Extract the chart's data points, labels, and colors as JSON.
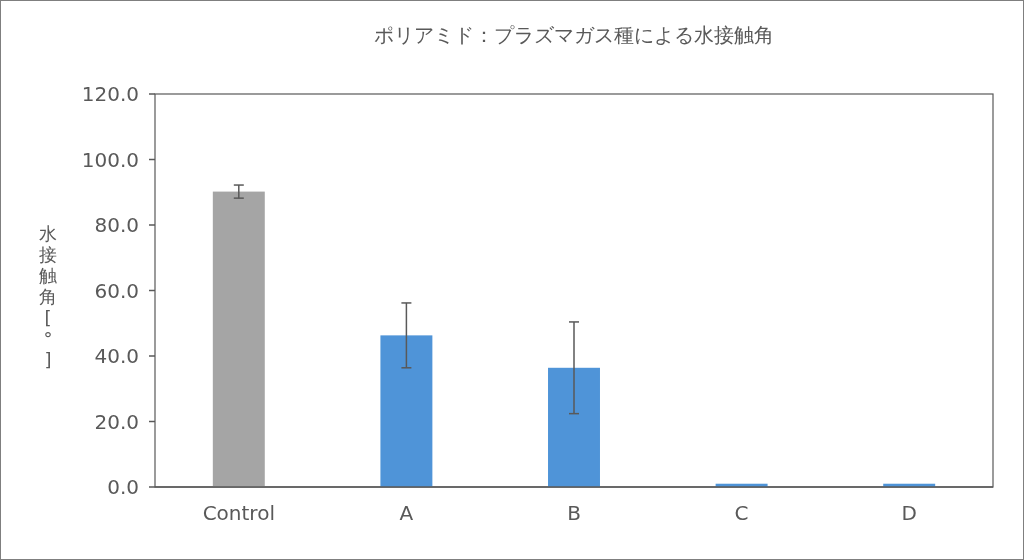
{
  "chart_data": {
    "type": "bar",
    "title": "ポリアミド：プラズマガス種による水接触角",
    "ylabel": "水接触角[°]",
    "categories": [
      "Control",
      "A",
      "B",
      "C",
      "D"
    ],
    "values": [
      90.2,
      46.3,
      36.4,
      1.0,
      1.0
    ],
    "errors": [
      2.0,
      9.9,
      14.0,
      null,
      null
    ],
    "colors": [
      "#a5a5a5",
      "#4f94d8",
      "#4f94d8",
      "#4f94d8",
      "#4f94d8"
    ],
    "ylim": [
      0,
      120
    ],
    "yticks": [
      {
        "value": 0,
        "label": "0.0"
      },
      {
        "value": 20,
        "label": "20.0"
      },
      {
        "value": 40,
        "label": "40.0"
      },
      {
        "value": 60,
        "label": "60.0"
      },
      {
        "value": 80,
        "label": "80.0"
      },
      {
        "value": 100,
        "label": "100.0"
      },
      {
        "value": 120,
        "label": "120.0"
      }
    ],
    "grid": false
  }
}
